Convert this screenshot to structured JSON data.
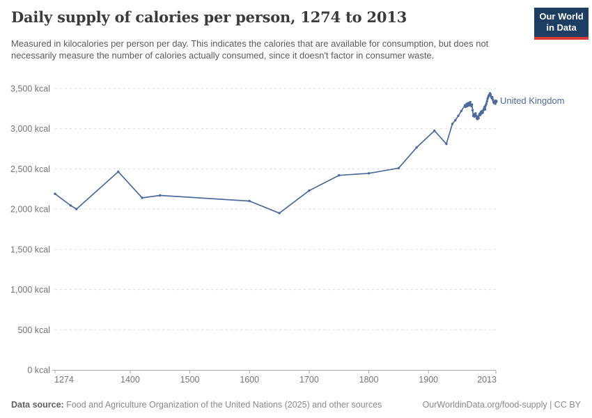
{
  "header": {
    "title": "Daily supply of calories per person, 1274 to 2013",
    "subtitle": "Measured in kilocalories per person per day. This indicates the calories that are available for consumption, but does not necessarily measure the number of calories actually consumed, since it doesn't factor in consumer waste.",
    "logo": {
      "line1": "Our World",
      "line2": "in Data",
      "bg_color": "#1d3d63",
      "stripe_color": "#d93a34"
    }
  },
  "chart_data": {
    "type": "line",
    "title": "Daily supply of calories per person, 1274 to 2013",
    "xlabel": "",
    "ylabel": "",
    "xlim": [
      1274,
      2013
    ],
    "ylim": [
      0,
      3500
    ],
    "grid": "horizontal-dashed",
    "legend_position": "entity label at right end of line",
    "x_ticks": [
      {
        "value": 1274,
        "label": "1274"
      },
      {
        "value": 1400,
        "label": "1400"
      },
      {
        "value": 1500,
        "label": "1500"
      },
      {
        "value": 1600,
        "label": "1600"
      },
      {
        "value": 1700,
        "label": "1700"
      },
      {
        "value": 1800,
        "label": "1800"
      },
      {
        "value": 1900,
        "label": "1900"
      },
      {
        "value": 2013,
        "label": "2013"
      }
    ],
    "y_ticks": [
      {
        "value": 0,
        "label": "0 kcal"
      },
      {
        "value": 500,
        "label": "500 kcal"
      },
      {
        "value": 1000,
        "label": "1,000 kcal"
      },
      {
        "value": 1500,
        "label": "1,500 kcal"
      },
      {
        "value": 2000,
        "label": "2,000 kcal"
      },
      {
        "value": 2500,
        "label": "2,500 kcal"
      },
      {
        "value": 3000,
        "label": "3,000 kcal"
      },
      {
        "value": 3500,
        "label": "3,500 kcal"
      }
    ],
    "series": [
      {
        "name": "United Kingdom",
        "color": "#4C6A9C",
        "points": [
          [
            1274,
            2190
          ],
          [
            1300,
            2045
          ],
          [
            1310,
            2000
          ],
          [
            1380,
            2465
          ],
          [
            1420,
            2140
          ],
          [
            1450,
            2170
          ],
          [
            1600,
            2100
          ],
          [
            1650,
            1950
          ],
          [
            1700,
            2230
          ],
          [
            1750,
            2420
          ],
          [
            1800,
            2445
          ],
          [
            1850,
            2510
          ],
          [
            1880,
            2765
          ],
          [
            1910,
            2975
          ],
          [
            1930,
            2810
          ],
          [
            1940,
            3060
          ],
          [
            1945,
            3105
          ],
          [
            1950,
            3160
          ],
          [
            1955,
            3220
          ],
          [
            1961,
            3290
          ],
          [
            1962,
            3270
          ],
          [
            1963,
            3290
          ],
          [
            1964,
            3310
          ],
          [
            1965,
            3280
          ],
          [
            1966,
            3300
          ],
          [
            1967,
            3320
          ],
          [
            1968,
            3290
          ],
          [
            1969,
            3310
          ],
          [
            1970,
            3330
          ],
          [
            1971,
            3300
          ],
          [
            1972,
            3280
          ],
          [
            1973,
            3300
          ],
          [
            1974,
            3230
          ],
          [
            1975,
            3160
          ],
          [
            1976,
            3180
          ],
          [
            1977,
            3150
          ],
          [
            1978,
            3170
          ],
          [
            1979,
            3190
          ],
          [
            1980,
            3160
          ],
          [
            1981,
            3130
          ],
          [
            1982,
            3120
          ],
          [
            1983,
            3150
          ],
          [
            1984,
            3130
          ],
          [
            1985,
            3170
          ],
          [
            1986,
            3190
          ],
          [
            1987,
            3170
          ],
          [
            1988,
            3210
          ],
          [
            1989,
            3190
          ],
          [
            1990,
            3220
          ],
          [
            1991,
            3200
          ],
          [
            1992,
            3230
          ],
          [
            1993,
            3250
          ],
          [
            1994,
            3270
          ],
          [
            1995,
            3240
          ],
          [
            1996,
            3290
          ],
          [
            1997,
            3310
          ],
          [
            1998,
            3340
          ],
          [
            1999,
            3370
          ],
          [
            2000,
            3390
          ],
          [
            2001,
            3410
          ],
          [
            2002,
            3420
          ],
          [
            2003,
            3440
          ],
          [
            2004,
            3430
          ],
          [
            2005,
            3400
          ],
          [
            2006,
            3380
          ],
          [
            2007,
            3390
          ],
          [
            2008,
            3360
          ],
          [
            2009,
            3330
          ],
          [
            2010,
            3320
          ],
          [
            2011,
            3340
          ],
          [
            2012,
            3310
          ],
          [
            2013,
            3340
          ]
        ]
      }
    ]
  },
  "footer": {
    "datasource_label": "Data source:",
    "datasource_text": "Food and Agriculture Organization of the United Nations (2025) and other sources",
    "link_text": "OurWorldinData.org/food-supply | CC BY"
  }
}
